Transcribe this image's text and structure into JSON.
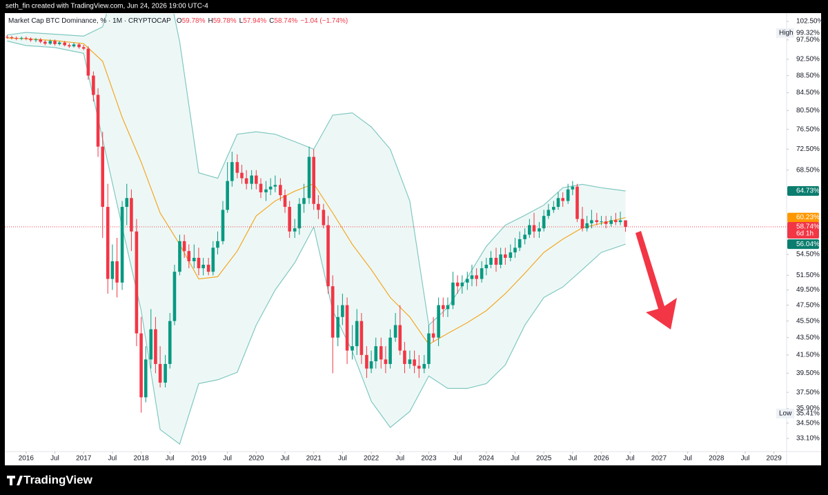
{
  "header": {
    "credit": "seth_fin created with TradingView.com, Jun 24, 2026 19:00 UTC-4",
    "brand": "TradingView"
  },
  "chart_data": {
    "type": "candlestick",
    "title": "Market Cap BTC Dominance, % · 1M · CRYPTOCAP",
    "ohlc": [
      {
        "key": "O",
        "value": "59.78%"
      },
      {
        "key": "H",
        "value": "59.78%"
      },
      {
        "key": "L",
        "value": "57.94%"
      },
      {
        "key": "C",
        "value": "58.74%"
      }
    ],
    "change": "−1.04 (−1.74%)",
    "log": true,
    "grid": false,
    "up_color": "#089981",
    "down_color": "#f23645",
    "xlim": [
      2015.63,
      2029.22
    ],
    "ylim": [
      31.94,
      104.64
    ],
    "xticks": [
      2016,
      {
        "value": 2016.5,
        "label": "Jul"
      },
      2017,
      {
        "value": 2017.5,
        "label": "Jul"
      },
      2018,
      {
        "value": 2018.5,
        "label": "Jul"
      },
      2019,
      {
        "value": 2019.5,
        "label": "Jul"
      },
      2020,
      {
        "value": 2020.5,
        "label": "Jul"
      },
      2021,
      {
        "value": 2021.5,
        "label": "Jul"
      },
      2022,
      {
        "value": 2022.5,
        "label": "Jul"
      },
      2023,
      {
        "value": 2023.5,
        "label": "Jul"
      },
      2024,
      {
        "value": 2024.5,
        "label": "Jul"
      },
      2025,
      {
        "value": 2025.5,
        "label": "Jul"
      },
      2026,
      {
        "value": 2026.5,
        "label": "Jul"
      },
      2027,
      {
        "value": 2027.5,
        "label": "Jul"
      },
      2028,
      {
        "value": 2028.5,
        "label": "Jul"
      },
      2029
    ],
    "yticks": [
      {
        "value": 102.5,
        "label": "102.50%"
      },
      {
        "value": 97.5,
        "label": "97.50%"
      },
      {
        "value": 92.5,
        "label": "92.50%"
      },
      {
        "value": 88.5,
        "label": "88.50%"
      },
      {
        "value": 84.5,
        "label": "84.50%"
      },
      {
        "value": 80.5,
        "label": "80.50%"
      },
      {
        "value": 76.5,
        "label": "76.50%"
      },
      {
        "value": 72.5,
        "label": "72.50%"
      },
      {
        "value": 68.5,
        "label": "68.50%"
      },
      {
        "value": 54.5,
        "label": "54.50%"
      },
      {
        "value": 51.5,
        "label": "51.50%"
      },
      {
        "value": 49.5,
        "label": "49.50%"
      },
      {
        "value": 47.5,
        "label": "47.50%"
      },
      {
        "value": 45.5,
        "label": "45.50%"
      },
      {
        "value": 43.5,
        "label": "43.50%"
      },
      {
        "value": 41.5,
        "label": "41.50%"
      },
      {
        "value": 39.5,
        "label": "39.50%"
      },
      {
        "value": 37.5,
        "label": "37.50%"
      },
      {
        "value": 35.9,
        "label": "35.90%"
      },
      {
        "value": 34.5,
        "label": "34.50%"
      },
      {
        "value": 33.1,
        "label": "33.10%"
      }
    ],
    "x": [
      2015.67,
      2015.75,
      2015.83,
      2015.92,
      2016,
      2016.08,
      2016.17,
      2016.25,
      2016.33,
      2016.42,
      2016.5,
      2016.58,
      2016.67,
      2016.75,
      2016.83,
      2016.92,
      2017,
      2017.08,
      2017.17,
      2017.25,
      2017.33,
      2017.42,
      2017.5,
      2017.58,
      2017.67,
      2017.75,
      2017.83,
      2017.92,
      2018,
      2018.08,
      2018.17,
      2018.25,
      2018.33,
      2018.42,
      2018.5,
      2018.58,
      2018.67,
      2018.75,
      2018.83,
      2018.92,
      2019,
      2019.08,
      2019.17,
      2019.25,
      2019.33,
      2019.42,
      2019.5,
      2019.58,
      2019.67,
      2019.75,
      2019.83,
      2019.92,
      2020,
      2020.08,
      2020.17,
      2020.25,
      2020.33,
      2020.42,
      2020.5,
      2020.58,
      2020.67,
      2020.75,
      2020.83,
      2020.92,
      2021,
      2021.08,
      2021.17,
      2021.25,
      2021.33,
      2021.42,
      2021.5,
      2021.58,
      2021.67,
      2021.75,
      2021.83,
      2021.92,
      2022,
      2022.08,
      2022.17,
      2022.25,
      2022.33,
      2022.42,
      2022.5,
      2022.58,
      2022.67,
      2022.75,
      2022.83,
      2022.92,
      2023,
      2023.08,
      2023.17,
      2023.25,
      2023.33,
      2023.42,
      2023.5,
      2023.58,
      2023.67,
      2023.75,
      2023.83,
      2023.92,
      2024,
      2024.08,
      2024.17,
      2024.25,
      2024.33,
      2024.42,
      2024.5,
      2024.58,
      2024.67,
      2024.75,
      2024.83,
      2024.92,
      2025,
      2025.08,
      2025.17,
      2025.25,
      2025.33,
      2025.42,
      2025.5,
      2025.58,
      2025.67,
      2025.75,
      2025.83,
      2025.92,
      2026,
      2026.08,
      2026.17,
      2026.25,
      2026.33,
      2026.42
    ],
    "open": [
      98.3,
      98.2,
      98.0,
      97.8,
      98.0,
      97.8,
      97.4,
      97.6,
      97.0,
      96.5,
      97.2,
      96.4,
      96.8,
      96.1,
      95.8,
      96.3,
      95.6,
      95.2,
      88.5,
      84.0,
      73.0,
      62.0,
      51.0,
      53.5,
      50.5,
      62.0,
      63.5,
      58.0,
      44.0,
      37.0,
      41.0,
      44.5,
      40.5,
      38.5,
      40.5,
      45.5,
      52.0,
      56.5,
      55.0,
      53.5,
      54.0,
      52.5,
      53.0,
      52.0,
      55.5,
      56.5,
      61.5,
      66.5,
      70.0,
      68.0,
      67.0,
      66.0,
      67.5,
      66.0,
      64.5,
      65.0,
      65.5,
      65.8,
      64.0,
      62.0,
      58.0,
      58.5,
      62.5,
      63.5,
      71.0,
      62.5,
      61.5,
      59.0,
      50.0,
      43.5,
      46.0,
      47.5,
      42.0,
      42.5,
      45.5,
      41.5,
      40.0,
      40.8,
      42.5,
      41.0,
      40.5,
      43.5,
      45.0,
      42.0,
      40.5,
      41.0,
      40.3,
      40.0,
      40.5,
      44.0,
      43.5,
      47.5,
      47.0,
      47.5,
      50.5,
      50.0,
      50.5,
      51.0,
      51.5,
      51.0,
      52.5,
      53.0,
      54.0,
      53.0,
      54.5,
      54.0,
      54.8,
      55.5,
      56.8,
      57.5,
      59.0,
      58.0,
      58.5,
      60.5,
      61.5,
      62.0,
      63.5,
      63.0,
      65.0,
      65.5,
      60.0,
      58.5,
      59.3,
      59.8,
      59.5,
      59.6,
      59.2,
      59.8,
      59.5,
      59.78
    ],
    "high": [
      98.8,
      98.6,
      98.4,
      98.4,
      98.4,
      98.2,
      98.0,
      98.0,
      97.4,
      97.6,
      97.6,
      97.2,
      97.2,
      96.6,
      96.8,
      96.7,
      96.2,
      95.8,
      89.5,
      85.5,
      76.0,
      66.0,
      56.0,
      57.0,
      63.0,
      66.0,
      65.0,
      60.0,
      46.0,
      42.5,
      47.0,
      46.0,
      42.5,
      41.5,
      46.5,
      53.0,
      57.5,
      57.5,
      56.0,
      56.0,
      55.5,
      54.0,
      54.0,
      56.5,
      58.0,
      63.0,
      70.0,
      72.0,
      71.5,
      69.5,
      68.5,
      68.5,
      68.5,
      67.0,
      66.5,
      67.0,
      67.5,
      67.0,
      65.0,
      63.0,
      60.0,
      63.5,
      66.0,
      73.0,
      72.5,
      64.0,
      62.5,
      60.5,
      51.5,
      47.5,
      49.0,
      48.5,
      45.0,
      47.0,
      46.5,
      42.5,
      42.0,
      43.5,
      43.5,
      42.5,
      44.5,
      46.5,
      47.5,
      43.0,
      42.0,
      42.0,
      41.5,
      41.5,
      45.0,
      46.0,
      48.5,
      48.5,
      48.5,
      52.0,
      51.5,
      51.5,
      52.0,
      53.0,
      52.5,
      53.5,
      54.0,
      55.0,
      55.5,
      55.5,
      55.5,
      56.0,
      57.0,
      58.0,
      58.5,
      60.0,
      61.0,
      59.5,
      61.5,
      62.5,
      63.0,
      64.5,
      64.5,
      66.0,
      66.5,
      66.0,
      62.0,
      60.5,
      61.5,
      61.0,
      60.5,
      60.5,
      60.5,
      61.0,
      61.2,
      59.78
    ],
    "low": [
      97.8,
      97.6,
      97.4,
      97.4,
      97.4,
      97.0,
      96.9,
      96.6,
      96.1,
      96.2,
      96.0,
      96.0,
      95.8,
      95.4,
      95.5,
      95.2,
      94.8,
      87.5,
      82.5,
      71.0,
      57.0,
      49.0,
      49.5,
      48.5,
      49.5,
      59.0,
      55.0,
      42.5,
      35.5,
      36.5,
      40.0,
      39.5,
      38.0,
      38.0,
      40.0,
      45.0,
      51.5,
      54.0,
      52.5,
      52.5,
      51.5,
      51.5,
      51.5,
      51.5,
      54.5,
      56.0,
      61.0,
      65.5,
      67.0,
      66.0,
      65.0,
      65.0,
      65.0,
      63.5,
      63.0,
      64.0,
      64.5,
      63.0,
      61.0,
      57.0,
      57.0,
      57.5,
      61.0,
      62.5,
      61.5,
      60.0,
      58.5,
      49.0,
      39.5,
      42.5,
      45.0,
      40.5,
      41.0,
      41.5,
      40.5,
      39.0,
      39.5,
      40.0,
      40.0,
      39.5,
      40.0,
      43.0,
      41.5,
      39.5,
      40.0,
      39.5,
      39.0,
      39.5,
      40.0,
      43.0,
      42.5,
      46.0,
      46.0,
      47.0,
      49.0,
      49.0,
      49.5,
      50.0,
      50.0,
      50.5,
      51.5,
      52.5,
      52.0,
      52.5,
      53.0,
      53.5,
      54.0,
      55.0,
      56.0,
      57.0,
      57.0,
      57.0,
      58.0,
      60.0,
      61.0,
      61.5,
      62.0,
      62.5,
      64.0,
      59.5,
      58.0,
      58.0,
      58.5,
      59.0,
      59.0,
      58.5,
      58.8,
      59.0,
      59.0,
      57.94
    ],
    "close": [
      98.2,
      98.0,
      97.8,
      98.0,
      97.8,
      97.4,
      97.6,
      97.0,
      96.5,
      97.2,
      96.4,
      96.8,
      96.1,
      95.8,
      96.3,
      95.6,
      95.2,
      88.5,
      84.0,
      73.0,
      62.0,
      51.0,
      53.5,
      50.5,
      62.0,
      63.5,
      58.0,
      44.0,
      37.0,
      41.0,
      44.5,
      40.5,
      38.5,
      40.5,
      45.5,
      52.0,
      56.5,
      55.0,
      53.5,
      54.0,
      52.5,
      53.0,
      52.0,
      55.5,
      56.5,
      61.5,
      66.5,
      70.0,
      68.0,
      67.0,
      66.0,
      67.5,
      66.0,
      64.5,
      65.0,
      65.5,
      65.8,
      64.0,
      62.0,
      58.0,
      58.5,
      62.5,
      63.5,
      71.0,
      62.5,
      61.5,
      59.0,
      50.0,
      43.5,
      46.0,
      47.5,
      42.0,
      42.5,
      45.5,
      41.5,
      40.0,
      40.8,
      42.5,
      41.0,
      40.5,
      43.5,
      45.0,
      42.0,
      40.5,
      41.0,
      40.3,
      40.0,
      40.5,
      44.0,
      43.5,
      47.5,
      47.0,
      47.5,
      50.5,
      50.0,
      50.5,
      51.0,
      51.5,
      51.0,
      52.5,
      53.0,
      54.0,
      53.0,
      54.5,
      54.0,
      54.8,
      55.5,
      56.8,
      57.5,
      59.0,
      58.0,
      58.5,
      60.5,
      61.5,
      62.0,
      63.5,
      63.0,
      65.0,
      65.5,
      60.0,
      58.5,
      59.3,
      59.8,
      59.5,
      59.6,
      59.2,
      59.8,
      59.5,
      59.78,
      58.74
    ],
    "bands": {
      "x": [
        2015.67,
        2016.0,
        2016.5,
        2017.0,
        2017.33,
        2017.67,
        2018.0,
        2018.33,
        2018.67,
        2019.0,
        2019.33,
        2019.67,
        2020.0,
        2020.33,
        2020.67,
        2021.0,
        2021.33,
        2021.67,
        2022.0,
        2022.33,
        2022.67,
        2023.0,
        2023.33,
        2023.67,
        2024.0,
        2024.33,
        2024.67,
        2025.0,
        2025.33,
        2025.67,
        2026.0,
        2026.42
      ],
      "upper": [
        98.8,
        99.5,
        99.0,
        98.5,
        101,
        120,
        140,
        125,
        97,
        68,
        67,
        75.5,
        76,
        75.5,
        74,
        72.5,
        79.5,
        80,
        77,
        72.5,
        63,
        45,
        47.2,
        51.2,
        55.7,
        59,
        60.6,
        62.3,
        65.3,
        65.9,
        65.3,
        64.73
      ],
      "basis": [
        98.0,
        97.8,
        97.3,
        96.5,
        92,
        79,
        70,
        61,
        56,
        51,
        51.3,
        55,
        60.5,
        63,
        64.7,
        66,
        61,
        56,
        52.3,
        48.5,
        46,
        42.7,
        44,
        45.3,
        46.8,
        49,
        51.8,
        54.8,
        56.8,
        58.6,
        59.3,
        60.23
      ],
      "lower": [
        97.2,
        96,
        95.5,
        94,
        74.5,
        58.7,
        46.8,
        33.9,
        32.6,
        38.4,
        38.8,
        39.6,
        45,
        49.5,
        53.3,
        58.7,
        46.8,
        41.9,
        36.6,
        34.1,
        35.6,
        39.2,
        37.9,
        37.9,
        38.4,
        40.4,
        45,
        48.5,
        49.9,
        52.3,
        54.8,
        56.04
      ],
      "line_color": "#80c8c0",
      "fill_color": "#e8f6f4",
      "basis_color": "#f5a623"
    },
    "price_labels": [
      {
        "tag": "High",
        "value": 99.32,
        "label": "99.32%"
      },
      {
        "value": 64.73,
        "label": "64.73%",
        "color": "#0b7d6f"
      },
      {
        "value": 60.23,
        "label": "60.23%",
        "color": "#ff9800"
      },
      {
        "value": 58.74,
        "label": "58.74%",
        "sub": "6d 1h",
        "color": "#f23645"
      },
      {
        "value": 56.04,
        "label": "56.04%",
        "color": "#0b7d6f"
      },
      {
        "tag": "Low",
        "value": 35.41,
        "label": "35.41%"
      }
    ]
  }
}
